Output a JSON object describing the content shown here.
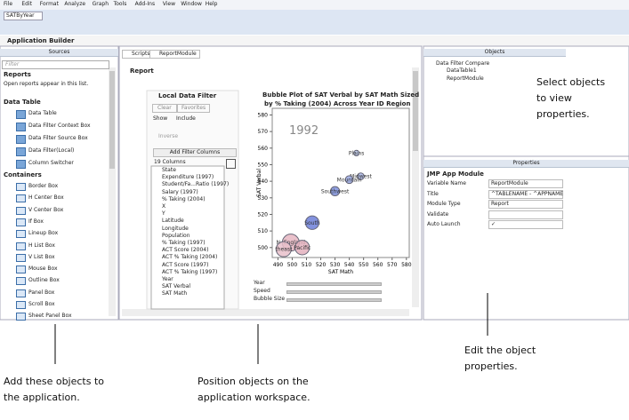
{
  "menu": [
    "File",
    "Edit",
    "Format",
    "Analyze",
    "Graph",
    "Tools",
    "Add-Ins",
    "View",
    "Window",
    "Help"
  ],
  "toolbar": {
    "table_select": "SATByYear"
  },
  "app_title": "Application Builder",
  "sources": {
    "title": "Sources",
    "filter_placeholder": "Filter",
    "reports": {
      "title": "Reports",
      "note": "Open reports appear in this list."
    },
    "data_table": {
      "title": "Data Table",
      "items": [
        "Data Table",
        "Data Filter Context Box",
        "Data Filter Source Box",
        "Data Filter(Local)",
        "Column Switcher"
      ]
    },
    "containers": {
      "title": "Containers",
      "items": [
        "Border Box",
        "H Center Box",
        "V Center Box",
        "If Box",
        "Lineup Box",
        "H List Box",
        "V List Box",
        "Mouse Box",
        "Outline Box",
        "Panel Box",
        "Scroll Box",
        "Sheet Panel Box"
      ]
    }
  },
  "workspace": {
    "tabs": [
      "Scripts",
      "ReportModule"
    ],
    "report_title": "Report",
    "filter": {
      "title": "Local Data Filter",
      "clear": "Clear",
      "favorites": "Favorites",
      "show": "Show",
      "include": "Include",
      "inverse": "Inverse",
      "add_columns": "Add Filter Columns",
      "column_count": "19 Columns",
      "columns": [
        "State",
        "Expenditure (1997)",
        "Student/Fa...Ratio (1997)",
        "Salary (1997)",
        "% Taking (2004)",
        "X",
        "Y",
        "Latitude",
        "Longitude",
        "Population",
        "% Taking (1997)",
        "ACT Score (2004)",
        "ACT % Taking (2004)",
        "ACT Score (1997)",
        "ACT % Taking (1997)",
        "Year",
        "SAT Verbal",
        "SAT Math"
      ]
    },
    "plot": {
      "title_lines": [
        "Bubble Plot of SAT Verbal by SAT Math Sized",
        "by % Taking (2004) Across Year ID Region"
      ],
      "year": "1992",
      "x_label": "SAT Math",
      "y_label": "SAT Verbal",
      "xlim": [
        486,
        582
      ],
      "ylim": [
        494,
        584
      ],
      "xticks": [
        490,
        500,
        510,
        520,
        530,
        540,
        550,
        560,
        570,
        580
      ],
      "yticks": [
        500,
        510,
        520,
        530,
        540,
        550,
        560,
        570,
        580
      ],
      "points": [
        {
          "name": "Plains",
          "x": 545,
          "y": 557,
          "size": 8,
          "color": "#b9c6e8"
        },
        {
          "name": "Midwest",
          "x": 548,
          "y": 543,
          "size": 12,
          "color": "#a9b6e6"
        },
        {
          "name": "Mountain",
          "x": 540,
          "y": 541,
          "size": 16,
          "color": "#9aa8e2"
        },
        {
          "name": "Southwest",
          "x": 530,
          "y": 534,
          "size": 22,
          "color": "#7d8fdc"
        },
        {
          "name": "South",
          "x": 514,
          "y": 515,
          "size": 48,
          "color": "#6d7fd8"
        },
        {
          "name": "N. England",
          "x": 499,
          "y": 503,
          "size": 75,
          "color": "#e6b6c2"
        },
        {
          "name": "theast",
          "x": 494,
          "y": 499,
          "size": 60,
          "color": "#e7c0ca"
        },
        {
          "name": "Pacific",
          "x": 507,
          "y": 500,
          "size": 55,
          "color": "#e3b0bd"
        }
      ],
      "sliders": [
        "Year",
        "Speed",
        "Bubble Size"
      ]
    }
  },
  "objects": {
    "title": "Objects",
    "root": "Data Filter Compare",
    "children": [
      "DataTable1",
      "ReportModule"
    ]
  },
  "properties": {
    "title": "Properties",
    "section": "JMP App Module",
    "rows": [
      {
        "label": "Variable Name",
        "value": "ReportModule"
      },
      {
        "label": "Title",
        "value": "^TABLENAME - ^APPNAME"
      },
      {
        "label": "Module Type",
        "value": "Report"
      },
      {
        "label": "Validate",
        "value": ""
      },
      {
        "label": "Auto Launch",
        "value": "✓"
      }
    ]
  },
  "callouts": {
    "select": [
      "Select objects",
      "to view",
      "properties."
    ],
    "add": [
      "Add these objects to",
      "the application."
    ],
    "position": [
      "Position objects on the",
      "application workspace."
    ],
    "edit": [
      "Edit the object",
      "properties."
    ]
  }
}
